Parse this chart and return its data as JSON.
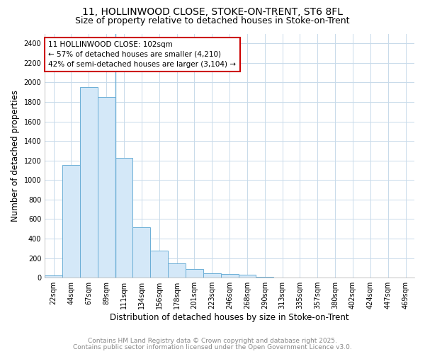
{
  "title_line1": "11, HOLLINWOOD CLOSE, STOKE-ON-TRENT, ST6 8FL",
  "title_line2": "Size of property relative to detached houses in Stoke-on-Trent",
  "xlabel": "Distribution of detached houses by size in Stoke-on-Trent",
  "ylabel": "Number of detached properties",
  "categories": [
    "22sqm",
    "44sqm",
    "67sqm",
    "89sqm",
    "111sqm",
    "134sqm",
    "156sqm",
    "178sqm",
    "201sqm",
    "223sqm",
    "246sqm",
    "268sqm",
    "290sqm",
    "313sqm",
    "335sqm",
    "357sqm",
    "380sqm",
    "402sqm",
    "424sqm",
    "447sqm",
    "469sqm"
  ],
  "values": [
    25,
    1155,
    1950,
    1850,
    1230,
    520,
    275,
    150,
    88,
    45,
    35,
    30,
    12,
    5,
    4,
    2,
    2,
    1,
    1,
    1,
    0
  ],
  "bar_color": "#d4e8f8",
  "bar_edge_color": "#6baed6",
  "annotation_text": "11 HOLLINWOOD CLOSE: 102sqm\n← 57% of detached houses are smaller (4,210)\n42% of semi-detached houses are larger (3,104) →",
  "annotation_box_facecolor": "#ffffff",
  "annotation_box_edgecolor": "#cc0000",
  "vline_color": "#6baed6",
  "vline_x": 3.5,
  "ylim": [
    0,
    2500
  ],
  "yticks": [
    0,
    200,
    400,
    600,
    800,
    1000,
    1200,
    1400,
    1600,
    1800,
    2000,
    2200,
    2400
  ],
  "grid_color": "#c8daea",
  "plot_bg_color": "#ffffff",
  "fig_bg_color": "#ffffff",
  "footnote_line1": "Contains HM Land Registry data © Crown copyright and database right 2025.",
  "footnote_line2": "Contains public sector information licensed under the Open Government Licence v3.0.",
  "footnote_color": "#888888",
  "title_fontsize": 10,
  "subtitle_fontsize": 9,
  "axis_label_fontsize": 8.5,
  "tick_fontsize": 7,
  "annotation_fontsize": 7.5,
  "footnote_fontsize": 6.5
}
